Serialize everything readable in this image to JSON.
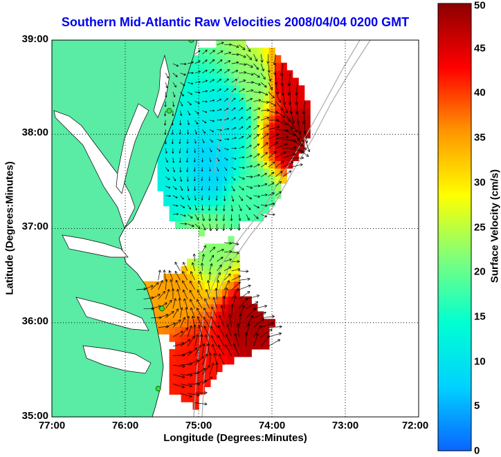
{
  "chart_data": {
    "type": "heatmap",
    "title": "Southern Mid-Atlantic Raw Velocities 2008/04/04 0200 GMT",
    "xlabel": "Longitude (Degrees:Minutes)",
    "ylabel": "Latitude (Degrees:Minutes)",
    "xlim": [
      -77,
      -72
    ],
    "ylim": [
      35,
      39
    ],
    "x_ticks": [
      "77:00",
      "76:00",
      "75:00",
      "74:00",
      "73:00",
      "72:00"
    ],
    "y_ticks": [
      "39:00",
      "38:00",
      "37:00",
      "36:00",
      "35:00"
    ],
    "grid": true,
    "colorbar": {
      "label": "Surface Velocity (cm/s)",
      "range": [
        0,
        50
      ],
      "ticks": [
        "0",
        "5",
        "10",
        "15",
        "20",
        "25",
        "30",
        "35",
        "40",
        "45",
        "50"
      ],
      "colors": [
        "#0a64ff",
        "#00d2ff",
        "#00ffd2",
        "#7dff7d",
        "#ffff00",
        "#ff9600",
        "#ff0000",
        "#8c0000"
      ]
    },
    "velocity_regions": [
      {
        "lon": -74.85,
        "lat": 37.65,
        "speed": 8
      },
      {
        "lon": -74.6,
        "lat": 38.2,
        "speed": 11
      },
      {
        "lon": -74.2,
        "lat": 38.55,
        "speed": 22
      },
      {
        "lon": -73.8,
        "lat": 38.55,
        "speed": 45
      },
      {
        "lon": -73.7,
        "lat": 38.0,
        "speed": 48
      },
      {
        "lon": -74.3,
        "lat": 37.3,
        "speed": 18
      },
      {
        "lon": -75.4,
        "lat": 37.5,
        "speed": 12
      },
      {
        "lon": -75.3,
        "lat": 36.35,
        "speed": 35
      },
      {
        "lon": -74.3,
        "lat": 36.0,
        "speed": 48
      },
      {
        "lon": -75.0,
        "lat": 35.6,
        "speed": 42
      },
      {
        "lon": -74.9,
        "lat": 36.8,
        "speed": 22
      }
    ],
    "sites": [
      {
        "lon": -75.1,
        "lat": 39.0
      },
      {
        "lon": -75.4,
        "lat": 38.25
      },
      {
        "lon": -75.5,
        "lat": 36.15
      },
      {
        "lon": -75.55,
        "lat": 35.3
      }
    ]
  }
}
